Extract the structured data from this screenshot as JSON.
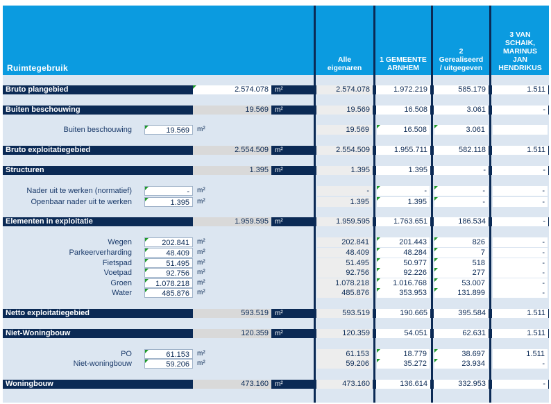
{
  "header": {
    "left_title": "Ruimtegebruik",
    "columns": [
      "Alle\neigenaren",
      "1 GEMEENTE\nARNHEM",
      "2\nGerealiseerd\n/ uitgegeven",
      "3 VAN\nSCHAIK,\nMARINUS\nJAN\nHENDRIKUS"
    ]
  },
  "unit": "m²",
  "rows": {
    "bruto_plangebied": {
      "label": "Bruto plangebied",
      "value": "2.574.078",
      "cols": [
        "2.574.078",
        "1.972.219",
        "585.179",
        "1.511"
      ]
    },
    "buiten_beschouwing": {
      "label": "Buiten beschouwing",
      "value": "19.569",
      "cols": [
        "19.569",
        "16.508",
        "3.061",
        "-"
      ]
    },
    "buiten_beschouwing_sub": {
      "label": "Buiten beschouwing",
      "value": "19.569",
      "cols": [
        "19.569",
        "16.508",
        "3.061",
        ""
      ]
    },
    "bruto_exploitatiegebied": {
      "label": "Bruto exploitatiegebied",
      "value": "2.554.509",
      "cols": [
        "2.554.509",
        "1.955.711",
        "582.118",
        "1.511"
      ]
    },
    "structuren": {
      "label": "Structuren",
      "value": "1.395",
      "cols": [
        "1.395",
        "1.395",
        "-",
        "-"
      ]
    },
    "nader_normatief": {
      "label": "Nader uit te werken (normatief)",
      "value": "-",
      "cols": [
        "-",
        "-",
        "-",
        "-"
      ]
    },
    "openbaar_nader": {
      "label": "Openbaar nader uit te werken",
      "value": "1.395",
      "cols": [
        "1.395",
        "1.395",
        "-",
        "-"
      ]
    },
    "elementen": {
      "label": "Elementen in exploitatie",
      "value": "1.959.595",
      "cols": [
        "1.959.595",
        "1.763.651",
        "186.534",
        "-"
      ]
    },
    "wegen": {
      "label": "Wegen",
      "value": "202.841",
      "cols": [
        "202.841",
        "201.443",
        "826",
        "-"
      ]
    },
    "parkeer": {
      "label": "Parkeerverharding",
      "value": "48.409",
      "cols": [
        "48.409",
        "48.284",
        "7",
        "-"
      ]
    },
    "fietspad": {
      "label": "Fietspad",
      "value": "51.495",
      "cols": [
        "51.495",
        "50.977",
        "518",
        "-"
      ]
    },
    "voetpad": {
      "label": "Voetpad",
      "value": "92.756",
      "cols": [
        "92.756",
        "92.226",
        "277",
        "-"
      ]
    },
    "groen": {
      "label": "Groen",
      "value": "1.078.218",
      "cols": [
        "1.078.218",
        "1.016.768",
        "53.007",
        "-"
      ]
    },
    "water": {
      "label": "Water",
      "value": "485.876",
      "cols": [
        "485.876",
        "353.953",
        "131.899",
        "-"
      ]
    },
    "netto": {
      "label": "Netto exploitatiegebied",
      "value": "593.519",
      "cols": [
        "593.519",
        "190.665",
        "395.584",
        "1.511"
      ]
    },
    "niet_woningbouw": {
      "label": "Niet-Woningbouw",
      "value": "120.359",
      "cols": [
        "120.359",
        "54.051",
        "62.631",
        "1.511"
      ]
    },
    "po": {
      "label": "PO",
      "value": "61.153",
      "cols": [
        "61.153",
        "18.779",
        "38.697",
        "1.511"
      ]
    },
    "niet_woningbouw_sub": {
      "label": "Niet-woningbouw",
      "value": "59.206",
      "cols": [
        "59.206",
        "35.272",
        "23.934",
        "-"
      ]
    },
    "woningbouw": {
      "label": "Woningbouw",
      "value": "473.160",
      "cols": [
        "473.160",
        "136.614",
        "332.953",
        "-"
      ]
    }
  },
  "colors": {
    "header_blue": "#0b9be0",
    "navy": "#0b2a55",
    "light_blue": "#dce6f1",
    "marker_green": "#1f9a2a"
  }
}
